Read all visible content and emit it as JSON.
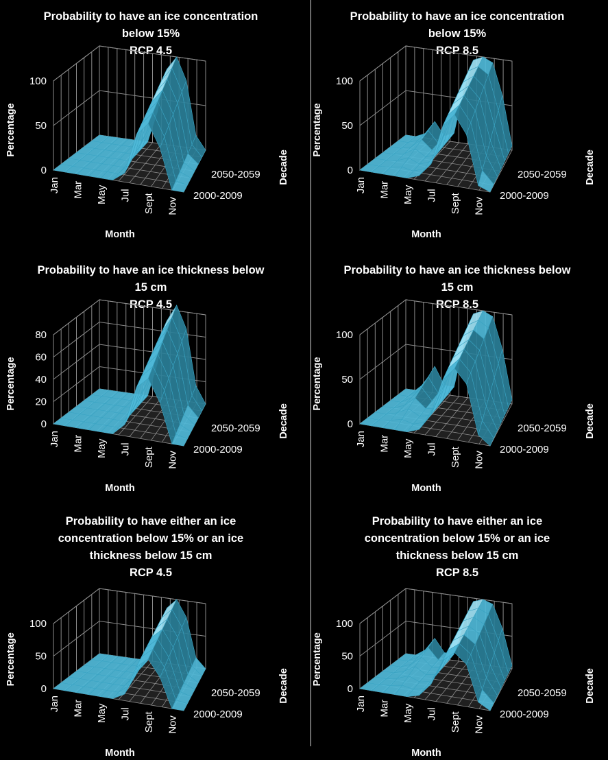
{
  "chart_data": [
    {
      "type": "surface",
      "title": [
        "Probability to have an ice concentration",
        "below 15%",
        "RCP 4.5"
      ],
      "xlabel": "Month",
      "ylabel": "Percentage",
      "zlabel": "Decade",
      "xticks": [
        "Jan",
        "Mar",
        "May",
        "Jul",
        "Sept",
        "Nov"
      ],
      "zticks": [
        "2050-2059",
        "2000-2009"
      ],
      "yticks": [
        "0",
        "50",
        "100"
      ],
      "ylim": [
        0,
        100
      ],
      "months": [
        1,
        2,
        3,
        4,
        5,
        6,
        7,
        8,
        9,
        10,
        11,
        12
      ],
      "series": [
        {
          "name": "2000-2009",
          "values": [
            0,
            0,
            0,
            0,
            0,
            0,
            10,
            55,
            70,
            45,
            0,
            0
          ]
        },
        {
          "name": "2050-2059",
          "values": [
            0,
            0,
            0,
            0,
            0,
            0,
            35,
            85,
            100,
            75,
            15,
            0
          ]
        }
      ]
    },
    {
      "type": "surface",
      "title": [
        "Probability to have an ice concentration",
        "below 15%",
        "RCP 8.5"
      ],
      "xlabel": "Month",
      "ylabel": "Percentage",
      "zlabel": "Decade",
      "xticks": [
        "Jan",
        "Mar",
        "May",
        "Jul",
        "Sept",
        "Nov"
      ],
      "zticks": [
        "2050-2059",
        "2000-2009"
      ],
      "yticks": [
        "0",
        "50",
        "100"
      ],
      "ylim": [
        0,
        100
      ],
      "months": [
        1,
        2,
        3,
        4,
        5,
        6,
        7,
        8,
        9,
        10,
        11,
        12
      ],
      "series": [
        {
          "name": "2000-2009",
          "values": [
            0,
            0,
            0,
            0,
            0,
            5,
            20,
            65,
            80,
            60,
            5,
            0
          ]
        },
        {
          "name": "2050-2059",
          "values": [
            0,
            0,
            5,
            20,
            5,
            10,
            60,
            95,
            100,
            95,
            60,
            5
          ]
        }
      ]
    },
    {
      "type": "surface",
      "title": [
        "Probability to have an ice thickness below",
        "15 cm",
        "RCP 4.5"
      ],
      "xlabel": "Month",
      "ylabel": "Percentage",
      "zlabel": "Decade",
      "xticks": [
        "Jan",
        "Mar",
        "May",
        "Jul",
        "Sept",
        "Nov"
      ],
      "zticks": [
        "2050-2059",
        "2000-2009"
      ],
      "yticks": [
        "0",
        "20",
        "40",
        "60",
        "80"
      ],
      "ylim": [
        0,
        80
      ],
      "months": [
        1,
        2,
        3,
        4,
        5,
        6,
        7,
        8,
        9,
        10,
        11,
        12
      ],
      "series": [
        {
          "name": "2000-2009",
          "values": [
            0,
            0,
            0,
            0,
            0,
            0,
            10,
            45,
            55,
            35,
            0,
            0
          ]
        },
        {
          "name": "2050-2059",
          "values": [
            0,
            0,
            0,
            0,
            0,
            0,
            30,
            70,
            85,
            65,
            15,
            0
          ]
        }
      ]
    },
    {
      "type": "surface",
      "title": [
        "Probability to have an ice thickness below",
        "15 cm",
        "RCP 8.5"
      ],
      "xlabel": "Month",
      "ylabel": "Percentage",
      "zlabel": "Decade",
      "xticks": [
        "Jan",
        "Mar",
        "May",
        "Jul",
        "Sept",
        "Nov"
      ],
      "zticks": [
        "2050-2059",
        "2000-2009"
      ],
      "yticks": [
        "0",
        "50",
        "100"
      ],
      "ylim": [
        0,
        100
      ],
      "months": [
        1,
        2,
        3,
        4,
        5,
        6,
        7,
        8,
        9,
        10,
        11,
        12
      ],
      "series": [
        {
          "name": "2000-2009",
          "values": [
            0,
            0,
            0,
            0,
            0,
            5,
            25,
            65,
            80,
            65,
            10,
            0
          ]
        },
        {
          "name": "2050-2059",
          "values": [
            0,
            0,
            10,
            30,
            10,
            10,
            60,
            95,
            100,
            95,
            60,
            5
          ]
        }
      ]
    },
    {
      "type": "surface",
      "title": [
        "Probability to have either an ice",
        "concentration below 15% or an ice",
        "thickness below 15 cm",
        "RCP 4.5"
      ],
      "xlabel": "Month",
      "ylabel": "Percentage",
      "zlabel": "Decade",
      "xticks": [
        "Jan",
        "Mar",
        "May",
        "Jul",
        "Sept",
        "Nov"
      ],
      "zticks": [
        "2050-2059",
        "2000-2009"
      ],
      "yticks": [
        "0",
        "50",
        "100"
      ],
      "ylim": [
        0,
        100
      ],
      "months": [
        1,
        2,
        3,
        4,
        5,
        6,
        7,
        8,
        9,
        10,
        11,
        12
      ],
      "series": [
        {
          "name": "2000-2009",
          "values": [
            0,
            0,
            0,
            0,
            0,
            0,
            10,
            55,
            70,
            45,
            0,
            0
          ]
        },
        {
          "name": "2050-2059",
          "values": [
            0,
            0,
            0,
            0,
            0,
            0,
            35,
            85,
            100,
            75,
            15,
            0
          ]
        }
      ]
    },
    {
      "type": "surface",
      "title": [
        "Probability to have either an ice",
        "concentration below 15% or an ice",
        "thickness below 15 cm",
        "RCP 8.5"
      ],
      "xlabel": "Month",
      "ylabel": "Percentage",
      "zlabel": "Decade",
      "xticks": [
        "Jan",
        "Mar",
        "May",
        "Jul",
        "Sept",
        "Nov"
      ],
      "zticks": [
        "2050-2059",
        "2000-2009"
      ],
      "yticks": [
        "0",
        "50",
        "100"
      ],
      "ylim": [
        0,
        100
      ],
      "months": [
        1,
        2,
        3,
        4,
        5,
        6,
        7,
        8,
        9,
        10,
        11,
        12
      ],
      "series": [
        {
          "name": "2000-2009",
          "values": [
            0,
            0,
            0,
            0,
            0,
            5,
            25,
            65,
            80,
            65,
            10,
            0
          ]
        },
        {
          "name": "2050-2059",
          "values": [
            0,
            0,
            10,
            30,
            10,
            10,
            60,
            95,
            100,
            95,
            60,
            5
          ]
        }
      ]
    }
  ],
  "colors": {
    "surface": "#4fb8d8",
    "surface_light": "#9fe3f5",
    "surface_dark": "#2a7f98",
    "grid": "#8c8c8c",
    "background": "#000000",
    "divider": "#d9d9d9"
  }
}
